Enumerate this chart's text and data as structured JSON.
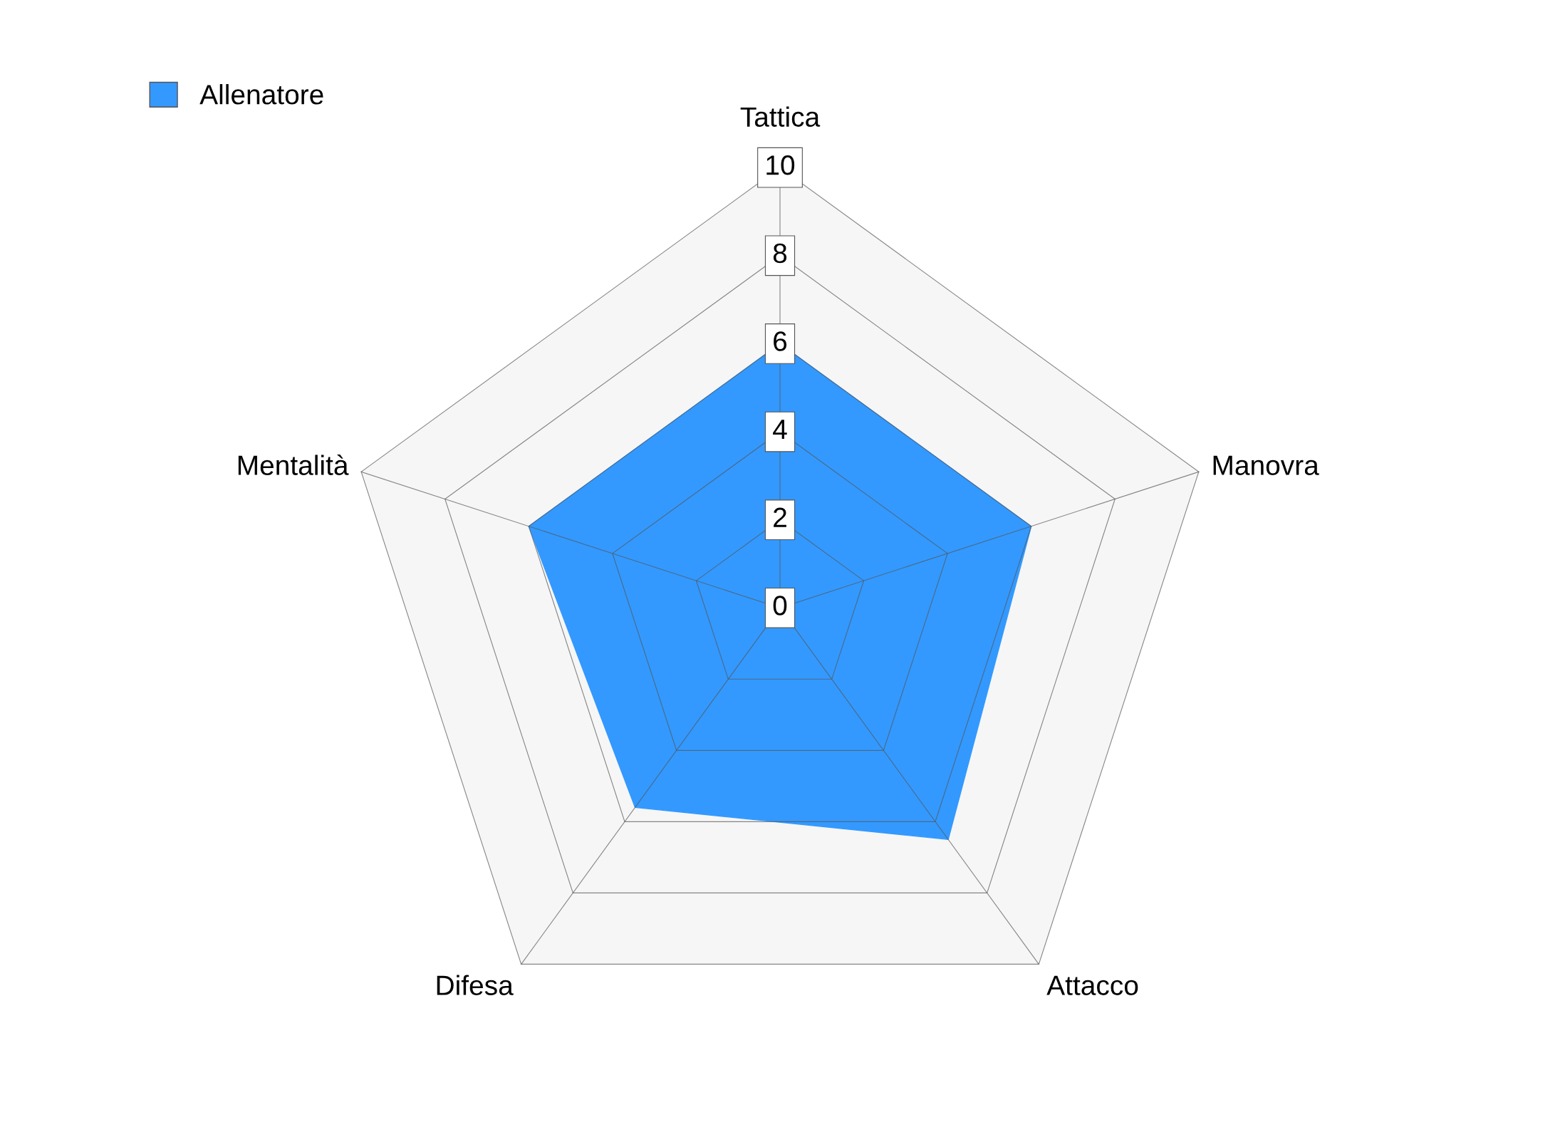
{
  "chart_data": {
    "type": "radar",
    "categories": [
      "Tattica",
      "Manovra",
      "Attacco",
      "Difesa",
      "Mentalità"
    ],
    "series": [
      {
        "name": "Allenatore",
        "color": "#3399ff",
        "values": [
          6,
          6,
          6.5,
          5.6,
          6
        ]
      }
    ],
    "ylim": [
      0,
      10
    ],
    "yticks": [
      0,
      2,
      4,
      6,
      8,
      10
    ],
    "grid": true,
    "legend": "top left"
  }
}
